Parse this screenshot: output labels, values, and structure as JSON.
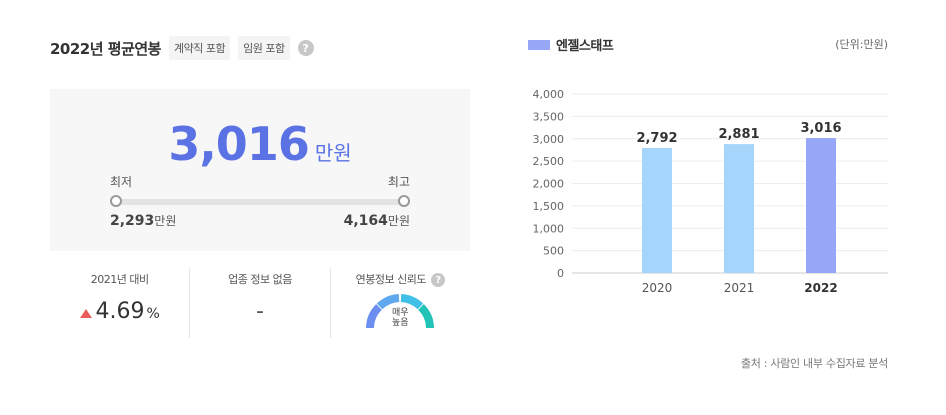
{
  "header": {
    "title": "2022년 평균연봉",
    "chips": [
      "계약직 포함",
      "임원 포함"
    ],
    "help_icon": "question-circle-icon"
  },
  "salary": {
    "average": "3,016",
    "average_unit": "만원",
    "min_label": "최저",
    "max_label": "최고",
    "min_value": "2,293",
    "max_value": "4,164",
    "unit": "만원"
  },
  "stats": {
    "growth_label": "2021년 대비",
    "growth_value": "4.69",
    "growth_unit": "%",
    "growth_direction_icon": "up-triangle-icon",
    "industry_label": "업종 정보 없음",
    "industry_value": "-",
    "reliability_label": "연봉정보 신뢰도",
    "reliability_line1": "매우",
    "reliability_line2": "높음"
  },
  "chart_header": {
    "legend_label": "엔젤스태프",
    "unit_note": "(단위:만원)"
  },
  "source_note": "출처 : 사람인 내부 수집자료 분석",
  "colors": {
    "accent": "#5a72e4",
    "bar_past": "#a5d5fb",
    "bar_current": "#97a6f7",
    "up": "#e85c5c"
  },
  "chart_data": {
    "type": "bar",
    "categories": [
      "2020",
      "2021",
      "2022"
    ],
    "values": [
      2792,
      2881,
      3016
    ],
    "value_labels": [
      "2,792",
      "2,881",
      "3,016"
    ],
    "yticks": [
      "4,000",
      "3,500",
      "3,000",
      "2,500",
      "2,000",
      "1,500",
      "1,000",
      "500",
      "0"
    ],
    "ylim": [
      0,
      4000
    ],
    "grid": true,
    "highlight_index": 2
  }
}
